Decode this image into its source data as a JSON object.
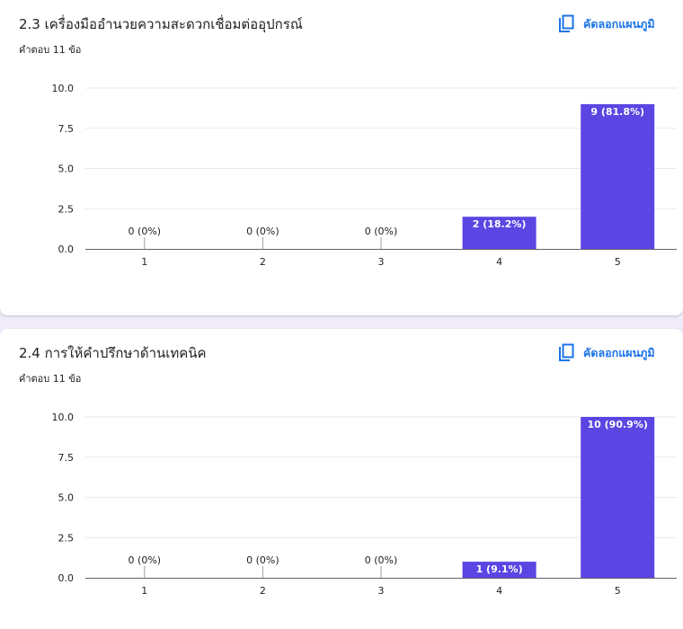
{
  "copy_label": "คัดลอกแผนภูมิ",
  "icons": {
    "copy": "copy-icon"
  },
  "colors": {
    "bar": "#5b45e3",
    "accent": "#1a73e8",
    "background": "#f0ebf8"
  },
  "questions": [
    {
      "title": "2.3 เครื่องมืออำนวยความสะดวกเชื่อมต่ออุปกรณ์",
      "response_count": "คำตอบ 11 ข้อ"
    },
    {
      "title": "2.4  การให้คำปรึกษาด้านเทคนิค",
      "response_count": "คำตอบ 11 ข้อ"
    }
  ],
  "chart_data": [
    {
      "type": "bar",
      "categories": [
        "1",
        "2",
        "3",
        "4",
        "5"
      ],
      "values": [
        0,
        0,
        0,
        2,
        9
      ],
      "data_labels": [
        "0 (0%)",
        "0 (0%)",
        "0 (0%)",
        "2 (18.2%)",
        "9 (81.8%)"
      ],
      "y_ticks": [
        "0.0",
        "2.5",
        "5.0",
        "7.5",
        "10.0"
      ],
      "ylim": [
        0,
        10
      ],
      "grid": true,
      "legend": "none"
    },
    {
      "type": "bar",
      "categories": [
        "1",
        "2",
        "3",
        "4",
        "5"
      ],
      "values": [
        0,
        0,
        0,
        1,
        10
      ],
      "data_labels": [
        "0 (0%)",
        "0 (0%)",
        "0 (0%)",
        "1 (9.1%)",
        "10 (90.9%)"
      ],
      "y_ticks": [
        "0.0",
        "2.5",
        "5.0",
        "7.5",
        "10.0"
      ],
      "ylim": [
        0,
        10
      ],
      "grid": true,
      "legend": "none"
    }
  ]
}
